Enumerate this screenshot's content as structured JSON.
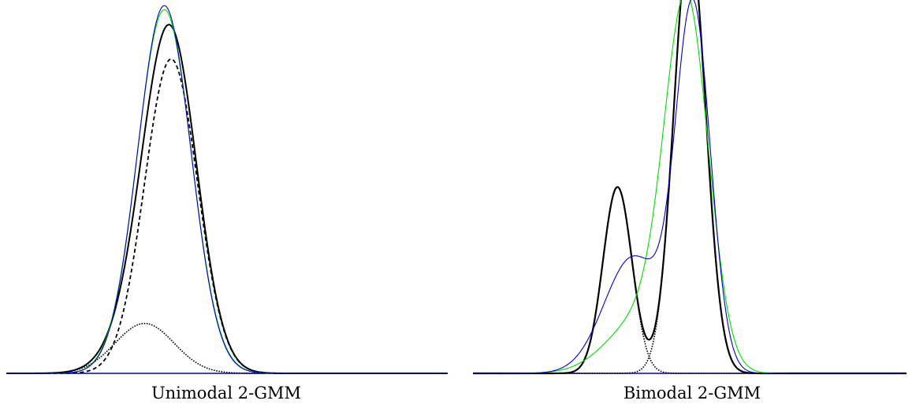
{
  "chart_data": [
    {
      "type": "line",
      "title": "Unimodal 2-GMM",
      "xlabel": "",
      "ylabel": "",
      "xlim": [
        -5,
        10
      ],
      "ylim": [
        0,
        0.44
      ],
      "grid": false,
      "axis_color": "#0000bb",
      "components": [
        {
          "weight": 0.15,
          "mean": -0.3,
          "sd": 1.0
        },
        {
          "weight": 0.85,
          "mean": 0.6,
          "sd": 0.9
        }
      ],
      "series": [
        {
          "role": "mixture",
          "color": "#000000",
          "style": "solid",
          "stroke_width": 2.0
        },
        {
          "role": "component",
          "component": 0,
          "color": "#000000",
          "style": "dotted",
          "stroke_width": 1.6
        },
        {
          "role": "component",
          "component": 1,
          "color": "#000000",
          "style": "dashed",
          "stroke_width": 1.8
        },
        {
          "role": "fit",
          "color": "#00dd00",
          "style": "solid",
          "stroke_width": 1.1,
          "mean": 0.37,
          "sd": 0.915
        },
        {
          "role": "fit",
          "color": "#0000cc",
          "style": "solid",
          "stroke_width": 1.1,
          "mean": 0.37,
          "sd": 0.905
        }
      ]
    },
    {
      "type": "line",
      "title": "Bimodal 2-GMM",
      "xlabel": "",
      "ylabel": "",
      "xlim": [
        -5,
        10
      ],
      "ylim": [
        0,
        0.44
      ],
      "grid": false,
      "axis_color": "#0000bb",
      "components": [
        {
          "weight": 0.28,
          "mean": 0.0,
          "sd": 0.5
        },
        {
          "weight": 0.72,
          "mean": 2.5,
          "sd": 0.55
        }
      ],
      "series": [
        {
          "role": "mixture",
          "color": "#000000",
          "style": "solid",
          "stroke_width": 2.2
        },
        {
          "role": "component",
          "component": 0,
          "color": "#000000",
          "style": "dotted",
          "stroke_width": 1.6
        },
        {
          "role": "component",
          "component": 1,
          "color": "#000000",
          "style": "dotted",
          "stroke_width": 1.6
        },
        {
          "role": "fit",
          "color": "#00dd00",
          "style": "solid",
          "stroke_width": 1.1,
          "mixture": [
            {
              "weight": 0.2,
              "mean": 0.9,
              "sd": 1.2
            },
            {
              "weight": 0.8,
              "mean": 2.4,
              "sd": 0.75
            }
          ]
        },
        {
          "role": "fit",
          "color": "#0000cc",
          "style": "solid",
          "stroke_width": 1.1,
          "mixture": [
            {
              "weight": 0.35,
              "mean": 0.55,
              "sd": 1.0
            },
            {
              "weight": 0.65,
              "mean": 2.62,
              "sd": 0.6
            }
          ]
        }
      ]
    }
  ]
}
